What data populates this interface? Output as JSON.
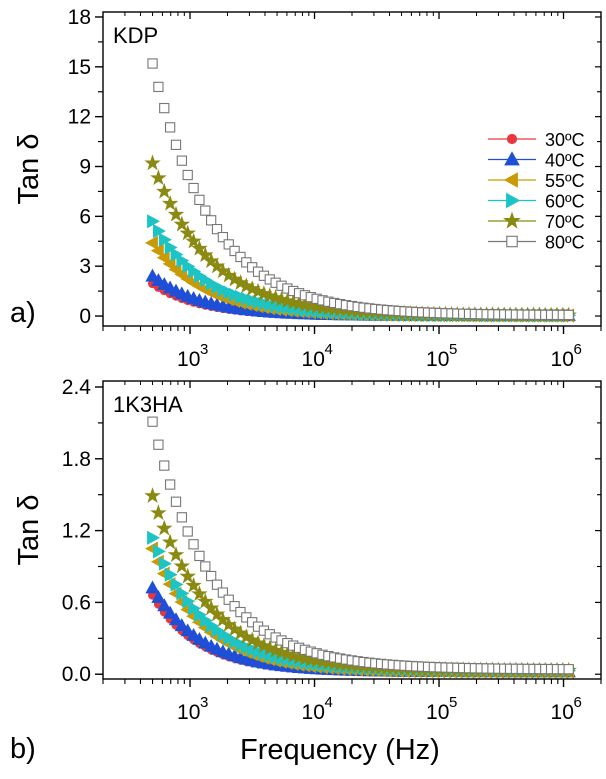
{
  "x_label": "Frequency (Hz)",
  "panel_letters": [
    "a)",
    "b)"
  ],
  "chart_data": [
    {
      "type": "scatter",
      "title": "KDP",
      "xlabel": "Frequency (Hz)",
      "ylabel": "Tan δ",
      "xscale": "log",
      "xlim": [
        200,
        2000000
      ],
      "ylim": [
        -0.6,
        18.3
      ],
      "yticks": [
        0,
        3,
        6,
        9,
        12,
        15,
        18
      ],
      "ytick_labels": [
        "0",
        "3",
        "6",
        "9",
        "12",
        "15",
        "18"
      ],
      "xticks": [
        1000,
        10000,
        100000,
        1000000
      ],
      "xtick_labels": [
        [
          "10",
          "3"
        ],
        [
          "10",
          "4"
        ],
        [
          "10",
          "5"
        ],
        [
          "10",
          "6"
        ]
      ],
      "legend_placement": "right",
      "f_range": [
        500,
        1100000
      ],
      "series": [
        {
          "name": "30ºC",
          "marker": "circle",
          "color": "#e8383d",
          "filled": true,
          "start_value": 1.95,
          "end_value": 0.02
        },
        {
          "name": "40ºC",
          "marker": "triangle-up",
          "color": "#1f4fd6",
          "filled": true,
          "start_value": 2.4,
          "end_value": 0.02
        },
        {
          "name": "55ºC",
          "marker": "triangle-left",
          "color": "#c99a06",
          "filled": true,
          "start_value": 4.4,
          "end_value": 0.03
        },
        {
          "name": "60ºC",
          "marker": "triangle-right",
          "color": "#1ec4c4",
          "filled": true,
          "start_value": 5.7,
          "end_value": 0.03
        },
        {
          "name": "70ºC",
          "marker": "star",
          "color": "#8a8a12",
          "filled": true,
          "start_value": 9.2,
          "end_value": 0.04
        },
        {
          "name": "80ºC",
          "marker": "square-open",
          "color": "#707070",
          "filled": false,
          "start_value": 15.2,
          "end_value": 0.05
        }
      ]
    },
    {
      "type": "scatter",
      "title": "1K3HA",
      "xlabel": "Frequency (Hz)",
      "ylabel": "Tan δ",
      "xscale": "log",
      "xlim": [
        200,
        2000000
      ],
      "ylim": [
        -0.04,
        2.45
      ],
      "yticks": [
        0,
        0.6,
        1.2,
        1.8,
        2.4
      ],
      "ytick_labels": [
        "0.0",
        "0.6",
        "1.2",
        "1.8",
        "2.4"
      ],
      "xticks": [
        1000,
        10000,
        100000,
        1000000
      ],
      "xtick_labels": [
        [
          "10",
          "3"
        ],
        [
          "10",
          "4"
        ],
        [
          "10",
          "5"
        ],
        [
          "10",
          "6"
        ]
      ],
      "f_range": [
        500,
        1100000
      ],
      "series": [
        {
          "name": "30ºC",
          "marker": "circle",
          "color": "#e8383d",
          "filled": true,
          "start_value": 0.66,
          "end_value": 0.02
        },
        {
          "name": "40ºC",
          "marker": "triangle-up",
          "color": "#1f4fd6",
          "filled": true,
          "start_value": 0.72,
          "end_value": 0.02
        },
        {
          "name": "55ºC",
          "marker": "triangle-left",
          "color": "#c99a06",
          "filled": true,
          "start_value": 1.05,
          "end_value": 0.02
        },
        {
          "name": "60ºC",
          "marker": "triangle-right",
          "color": "#1ec4c4",
          "filled": true,
          "start_value": 1.14,
          "end_value": 0.03
        },
        {
          "name": "70ºC",
          "marker": "star",
          "color": "#8a8a12",
          "filled": true,
          "start_value": 1.49,
          "end_value": 0.03
        },
        {
          "name": "80ºC",
          "marker": "square-open",
          "color": "#707070",
          "filled": false,
          "start_value": 2.11,
          "end_value": 0.04
        }
      ]
    }
  ]
}
